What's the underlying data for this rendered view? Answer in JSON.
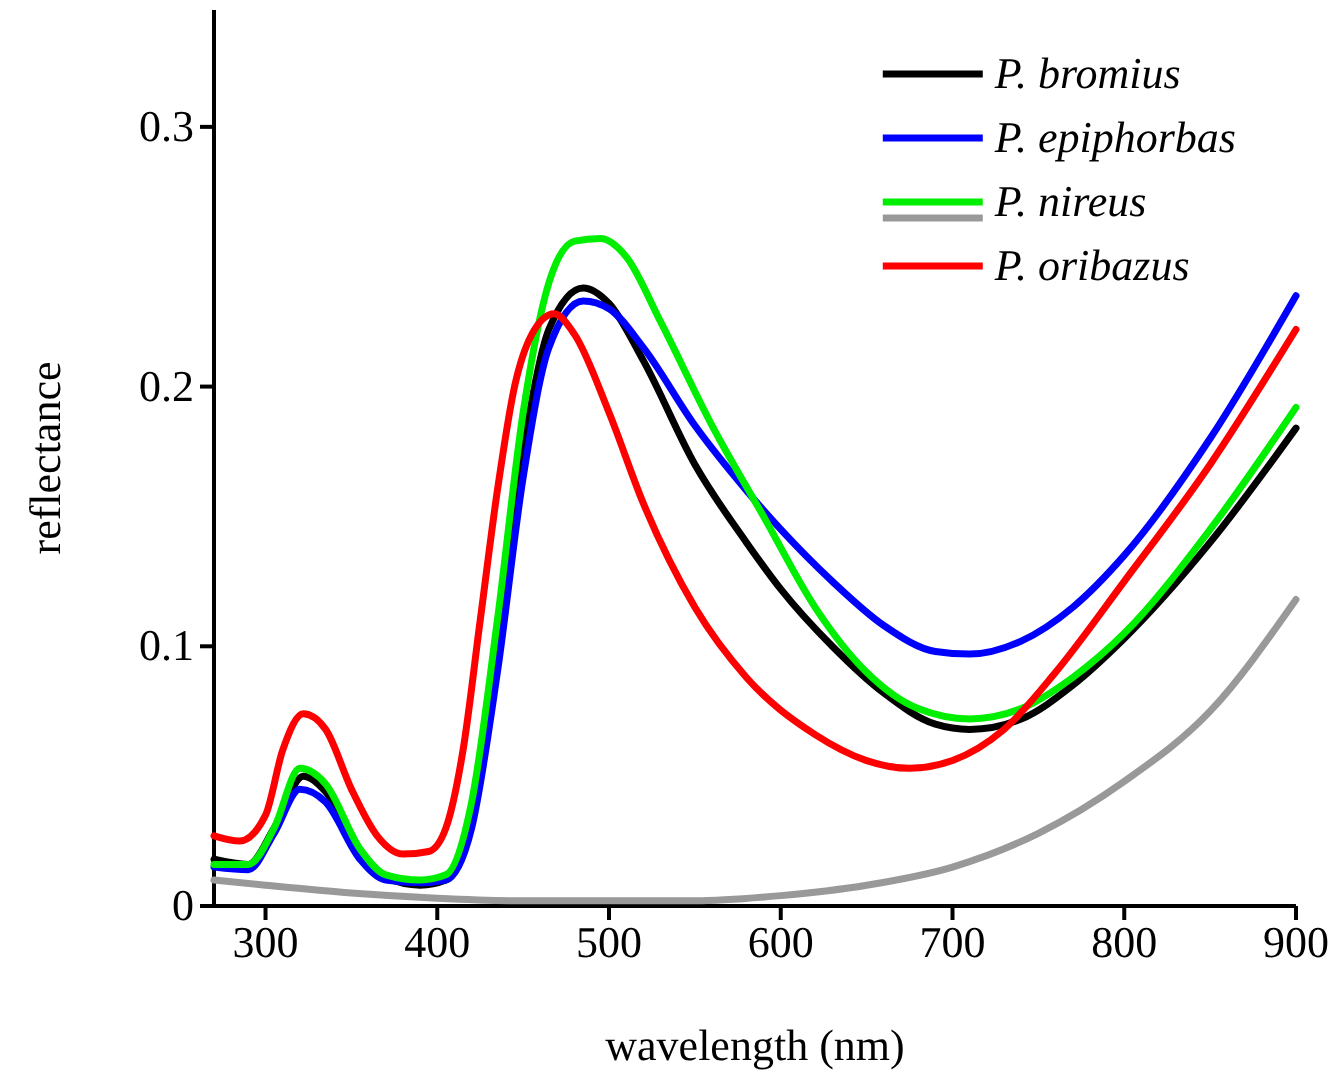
{
  "chart_data": {
    "type": "line",
    "xlabel": "wavelength (nm)",
    "ylabel": "reflectance",
    "xlim": [
      270,
      900
    ],
    "ylim": [
      0,
      0.345
    ],
    "xticks": [
      300,
      400,
      500,
      600,
      700,
      800,
      900
    ],
    "yticks": [
      0,
      0.1,
      0.2,
      0.3
    ],
    "grid": false,
    "legend": "top right",
    "line_style": "solid",
    "marker": "none",
    "series": [
      {
        "name": "P. bromius",
        "color": "#000000",
        "x": [
          270,
          290,
          305,
          322,
          335,
          355,
          370,
          390,
          405,
          420,
          435,
          450,
          465,
          485,
          500,
          520,
          550,
          580,
          600,
          630,
          660,
          690,
          710,
          740,
          770,
          800,
          850,
          900
        ],
        "values": [
          0.018,
          0.016,
          0.03,
          0.05,
          0.044,
          0.02,
          0.011,
          0.008,
          0.01,
          0.032,
          0.1,
          0.175,
          0.222,
          0.238,
          0.232,
          0.21,
          0.17,
          0.14,
          0.122,
          0.1,
          0.082,
          0.07,
          0.068,
          0.072,
          0.085,
          0.103,
          0.14,
          0.184
        ]
      },
      {
        "name": "P. epiphorbas",
        "color": "#0000ff",
        "x": [
          270,
          290,
          305,
          320,
          335,
          355,
          370,
          390,
          405,
          420,
          435,
          450,
          465,
          485,
          500,
          520,
          550,
          580,
          600,
          630,
          660,
          690,
          710,
          740,
          770,
          800,
          850,
          900
        ],
        "values": [
          0.015,
          0.014,
          0.028,
          0.045,
          0.04,
          0.018,
          0.01,
          0.009,
          0.01,
          0.03,
          0.09,
          0.165,
          0.215,
          0.233,
          0.23,
          0.215,
          0.185,
          0.16,
          0.145,
          0.125,
          0.108,
          0.098,
          0.097,
          0.102,
          0.115,
          0.135,
          0.18,
          0.235
        ]
      },
      {
        "name": "P. nireus",
        "color": "#00ee00",
        "x": [
          270,
          290,
          305,
          320,
          335,
          355,
          370,
          390,
          405,
          420,
          435,
          450,
          465,
          480,
          495,
          510,
          530,
          560,
          590,
          620,
          650,
          680,
          710,
          740,
          770,
          800,
          850,
          900
        ],
        "values": [
          0.016,
          0.016,
          0.03,
          0.053,
          0.047,
          0.022,
          0.012,
          0.01,
          0.012,
          0.04,
          0.11,
          0.19,
          0.24,
          0.256,
          0.257,
          0.25,
          0.225,
          0.185,
          0.15,
          0.115,
          0.09,
          0.076,
          0.072,
          0.076,
          0.088,
          0.105,
          0.145,
          0.192
        ]
      },
      {
        "color": "#999999",
        "x": [
          270,
          300,
          350,
          400,
          450,
          500,
          550,
          600,
          650,
          700,
          750,
          800,
          850,
          900
        ],
        "values": [
          0.01,
          0.008,
          0.005,
          0.003,
          0.002,
          0.002,
          0.002,
          0.004,
          0.008,
          0.015,
          0.028,
          0.048,
          0.075,
          0.118
        ]
      },
      {
        "name": "P. oribazus",
        "color": "#ff0000",
        "x": [
          270,
          285,
          300,
          310,
          322,
          335,
          350,
          365,
          380,
          395,
          405,
          415,
          425,
          435,
          445,
          455,
          468,
          480,
          500,
          520,
          550,
          580,
          620,
          650,
          675,
          700,
          730,
          760,
          800,
          850,
          900
        ],
        "values": [
          0.027,
          0.025,
          0.035,
          0.06,
          0.074,
          0.068,
          0.045,
          0.027,
          0.02,
          0.021,
          0.03,
          0.06,
          0.11,
          0.16,
          0.2,
          0.22,
          0.228,
          0.22,
          0.19,
          0.155,
          0.115,
          0.088,
          0.066,
          0.056,
          0.053,
          0.056,
          0.068,
          0.09,
          0.125,
          0.17,
          0.222
        ]
      }
    ]
  }
}
